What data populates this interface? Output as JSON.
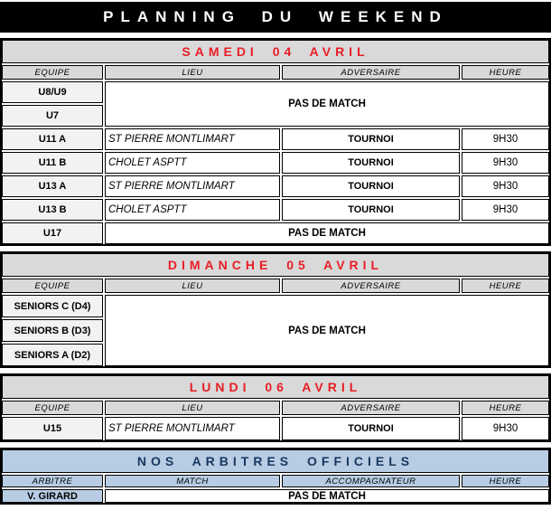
{
  "banner": {
    "title": "PLANNING DU WEEKEND"
  },
  "colors": {
    "banner_bg": "#000000",
    "banner_text": "#ffffff",
    "section_title_red": "#e81e25",
    "section_header_bg": "#d9d9d9",
    "team_cell_bg": "#f2f2f2",
    "arbitres_bg": "#b8cce4",
    "arbitres_text": "#17375e",
    "border": "#000000"
  },
  "sections": [
    {
      "title": "SAMEDI 04 AVRIL",
      "columns": [
        "EQUIPE",
        "LIEU",
        "ADVERSAIRE",
        "HEURE"
      ],
      "no_match_top": {
        "teams": [
          "U8/U9",
          "U7"
        ],
        "label": "PAS DE MATCH"
      },
      "matches": [
        {
          "team": "U11 A",
          "lieu": "ST PIERRE MONTLIMART",
          "adversaire": "TOURNOI",
          "heure": "9H30"
        },
        {
          "team": "U11 B",
          "lieu": "CHOLET ASPTT",
          "adversaire": "TOURNOI",
          "heure": "9H30"
        },
        {
          "team": "U13 A",
          "lieu": "ST PIERRE MONTLIMART",
          "adversaire": "TOURNOI",
          "heure": "9H30"
        },
        {
          "team": "U13 B",
          "lieu": "CHOLET ASPTT",
          "adversaire": "TOURNOI",
          "heure": "9H30"
        }
      ],
      "no_match_bottom": {
        "teams": [
          "U17"
        ],
        "label": "PAS DE MATCH"
      }
    },
    {
      "title": "DIMANCHE 05 AVRIL",
      "columns": [
        "EQUIPE",
        "LIEU",
        "ADVERSAIRE",
        "HEURE"
      ],
      "no_match": {
        "teams": [
          "SENIORS C (D4)",
          "SENIORS B (D3)",
          "SENIORS A (D2)"
        ],
        "label": "PAS DE MATCH"
      }
    },
    {
      "title": "LUNDI 06 AVRIL",
      "columns": [
        "EQUIPE",
        "LIEU",
        "ADVERSAIRE",
        "HEURE"
      ],
      "matches": [
        {
          "team": "U15",
          "lieu": "ST PIERRE MONTLIMART",
          "adversaire": "TOURNOI",
          "heure": "9H30"
        }
      ]
    },
    {
      "title": "NOS ARBITRES OFFICIELS",
      "columns": [
        "ARBITRE",
        "MATCH",
        "ACCOMPAGNATEUR",
        "HEURE"
      ],
      "no_match": {
        "teams": [
          "V. GIRARD"
        ],
        "label": "PAS DE MATCH"
      }
    }
  ]
}
